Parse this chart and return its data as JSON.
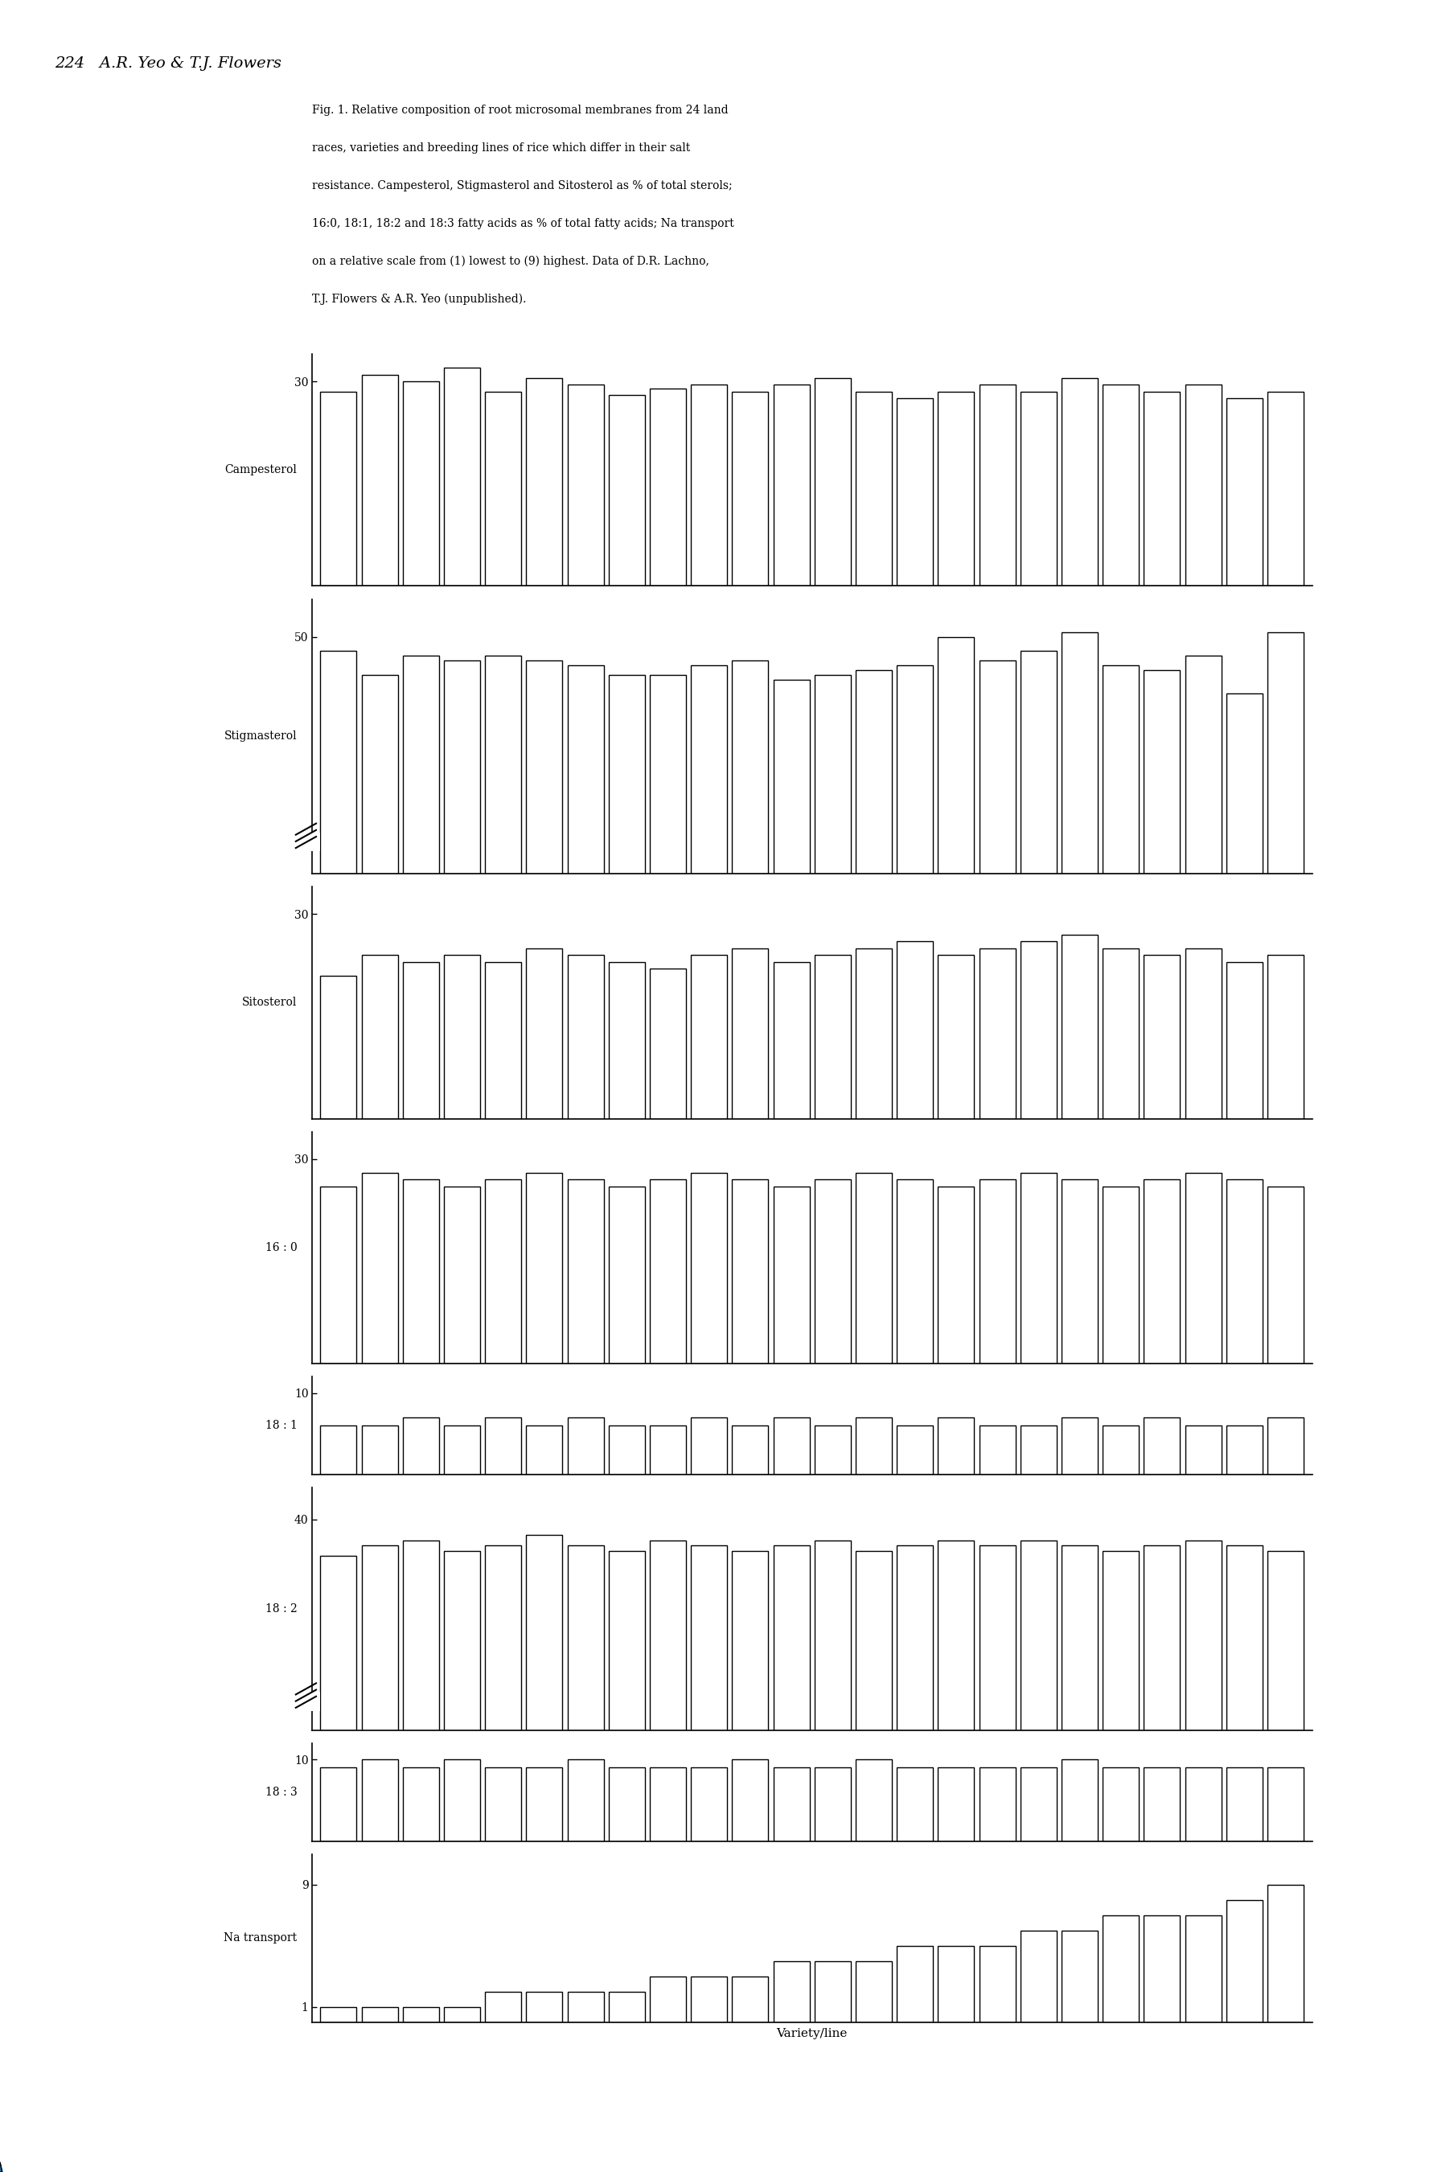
{
  "page_header": "224   A.R. Yeo & T.J. Flowers",
  "caption_lines": [
    "Fig. 1. Relative composition of root microsomal membranes from 24 land",
    "races, varieties and breeding lines of rice which differ in their salt",
    "resistance. Campesterol, Stigmasterol and Sitosterol as % of total sterols;",
    "16:0, 18:1, 18:2 and 18:3 fatty acids as % of total fatty acids; Na transport",
    "on a relative scale from (1) lowest to (9) highest. Data of D.R. Lachno,",
    "T.J. Flowers & A.R. Yeo (unpublished)."
  ],
  "subplots": [
    {
      "label": "Campesterol",
      "ytop_label": "30",
      "ytop_val": 30,
      "ylim": [
        0,
        34
      ],
      "has_break": false,
      "data": [
        28.5,
        31.0,
        30.0,
        32.0,
        28.5,
        30.5,
        29.5,
        28.0,
        29.0,
        29.5,
        28.5,
        29.5,
        30.5,
        28.5,
        27.5,
        28.5,
        29.5,
        28.5,
        30.5,
        29.5,
        28.5,
        29.5,
        27.5,
        28.5
      ]
    },
    {
      "label": "Stigmasterol",
      "ytop_label": "50",
      "ytop_val": 50,
      "ylim": [
        0,
        58
      ],
      "has_break": true,
      "data": [
        47,
        42,
        46,
        45,
        46,
        45,
        44,
        42,
        42,
        44,
        45,
        41,
        42,
        43,
        44,
        50,
        45,
        47,
        51,
        44,
        43,
        46,
        38,
        51
      ]
    },
    {
      "label": "Sitosterol",
      "ytop_label": "30",
      "ytop_val": 30,
      "ylim": [
        0,
        34
      ],
      "has_break": false,
      "data": [
        21,
        24,
        23,
        24,
        23,
        25,
        24,
        23,
        22,
        24,
        25,
        23,
        24,
        25,
        26,
        24,
        25,
        26,
        27,
        25,
        24,
        25,
        23,
        24
      ]
    },
    {
      "label": "16 : 0",
      "ytop_label": "30",
      "ytop_val": 30,
      "ylim": [
        0,
        34
      ],
      "has_break": false,
      "data": [
        26,
        28,
        27,
        26,
        27,
        28,
        27,
        26,
        27,
        28,
        27,
        26,
        27,
        28,
        27,
        26,
        27,
        28,
        27,
        26,
        27,
        28,
        27,
        26
      ]
    },
    {
      "label": "18 : 1",
      "ytop_label": "10",
      "ytop_val": 10,
      "ylim": [
        0,
        12
      ],
      "has_break": false,
      "data": [
        6,
        6,
        7,
        6,
        7,
        6,
        7,
        6,
        6,
        7,
        6,
        7,
        6,
        7,
        6,
        7,
        6,
        6,
        7,
        6,
        7,
        6,
        6,
        7
      ]
    },
    {
      "label": "18 : 2",
      "ytop_label": "40",
      "ytop_val": 40,
      "ylim": [
        0,
        46
      ],
      "has_break": true,
      "data": [
        33,
        35,
        36,
        34,
        35,
        37,
        35,
        34,
        36,
        35,
        34,
        35,
        36,
        34,
        35,
        36,
        35,
        36,
        35,
        34,
        35,
        36,
        35,
        34
      ]
    },
    {
      "label": "18 : 3",
      "ytop_label": "10",
      "ytop_val": 10,
      "ylim": [
        0,
        12
      ],
      "has_break": false,
      "data": [
        9,
        10,
        9,
        10,
        9,
        9,
        10,
        9,
        9,
        9,
        10,
        9,
        9,
        10,
        9,
        9,
        9,
        9,
        10,
        9,
        9,
        9,
        9,
        9
      ]
    },
    {
      "label": "Na transport",
      "ytop_label": "9",
      "ytop_val": 9,
      "ybot_label": "1",
      "ybot_val": 1,
      "ylim": [
        0,
        11
      ],
      "has_break": false,
      "data": [
        1,
        1,
        1,
        1,
        2,
        2,
        2,
        2,
        3,
        3,
        3,
        4,
        4,
        4,
        5,
        5,
        5,
        6,
        6,
        7,
        7,
        7,
        8,
        9
      ]
    }
  ],
  "n_bars": 24,
  "bar_facecolor": "white",
  "bar_edgecolor": "black",
  "xlabel": "Variety/line",
  "background": "white",
  "scale_heights": [
    1.15,
    1.35,
    1.15,
    1.15,
    0.52,
    1.2,
    0.52,
    0.85
  ]
}
